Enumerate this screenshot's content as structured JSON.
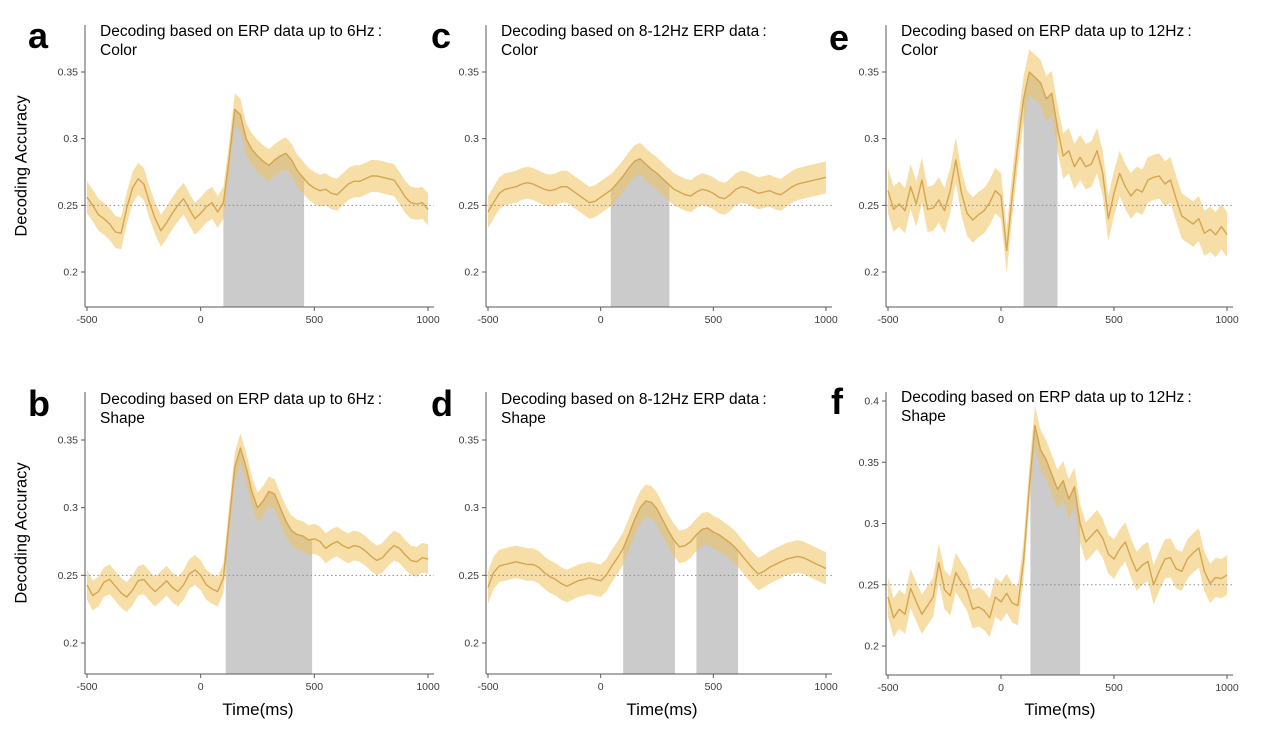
{
  "figure": {
    "ylabel": "Decoding Accuracy",
    "xlabel": "Time(ms)",
    "chance_level": 0.25,
    "background": "#ffffff"
  },
  "colors": {
    "band": "#f0c35e",
    "band_alpha": 0.55,
    "line": "#d3a14b",
    "line_alpha": 0.95,
    "sig": "#cbcbcb",
    "dash": "#8c8c8c",
    "axis": "#5a5a5a",
    "tick_text": "#3c3c3c",
    "title_text": "#000000"
  },
  "chart_data": [
    {
      "id": "a",
      "letter": "a",
      "type": "line",
      "title_line1": "Decoding based on ERP data up to 6Hz :",
      "title_line2": "Color",
      "x_start": -500,
      "x_step": 25,
      "xlim": [
        -510,
        1020
      ],
      "ylim": [
        0.178,
        0.386
      ],
      "x_ticks": {
        "values": [
          -500,
          0,
          500,
          1000
        ],
        "labels": [
          "-500",
          "0",
          "500",
          "1000"
        ]
      },
      "y_ticks": {
        "values": [
          0.2,
          0.25,
          0.3,
          0.35
        ],
        "labels": [
          "0.2",
          "0.25",
          "0.3",
          "0.35"
        ]
      },
      "band_halfwidth": 0.012,
      "sig_regions": [
        [
          100,
          455
        ]
      ],
      "values": [
        0.256,
        0.25,
        0.243,
        0.24,
        0.236,
        0.23,
        0.229,
        0.248,
        0.263,
        0.27,
        0.266,
        0.252,
        0.24,
        0.231,
        0.237,
        0.244,
        0.25,
        0.255,
        0.247,
        0.24,
        0.244,
        0.249,
        0.252,
        0.245,
        0.252,
        0.285,
        0.322,
        0.318,
        0.3,
        0.292,
        0.287,
        0.283,
        0.28,
        0.284,
        0.287,
        0.289,
        0.284,
        0.276,
        0.271,
        0.266,
        0.263,
        0.261,
        0.262,
        0.259,
        0.258,
        0.262,
        0.266,
        0.268,
        0.268,
        0.27,
        0.272,
        0.272,
        0.271,
        0.27,
        0.269,
        0.263,
        0.256,
        0.252,
        0.251,
        0.252,
        0.247
      ]
    },
    {
      "id": "b",
      "letter": "b",
      "type": "line",
      "title_line1": "Decoding based on ERP data up to 6Hz :",
      "title_line2": "Shape",
      "x_start": -500,
      "x_step": 25,
      "xlim": [
        -510,
        1020
      ],
      "ylim": [
        0.177,
        0.388
      ],
      "x_ticks": {
        "values": [
          -500,
          0,
          500,
          1000
        ],
        "labels": [
          "-500",
          "0",
          "500",
          "1000"
        ]
      },
      "y_ticks": {
        "values": [
          0.2,
          0.25,
          0.3,
          0.35
        ],
        "labels": [
          "0.2",
          "0.25",
          "0.3",
          "0.35"
        ]
      },
      "band_halfwidth": 0.011,
      "sig_regions": [
        [
          110,
          490
        ]
      ],
      "values": [
        0.243,
        0.235,
        0.238,
        0.245,
        0.247,
        0.242,
        0.237,
        0.234,
        0.239,
        0.246,
        0.247,
        0.242,
        0.238,
        0.242,
        0.246,
        0.241,
        0.238,
        0.243,
        0.251,
        0.254,
        0.25,
        0.243,
        0.24,
        0.238,
        0.248,
        0.29,
        0.33,
        0.344,
        0.33,
        0.312,
        0.3,
        0.305,
        0.312,
        0.31,
        0.3,
        0.29,
        0.283,
        0.28,
        0.279,
        0.276,
        0.277,
        0.275,
        0.27,
        0.273,
        0.275,
        0.272,
        0.27,
        0.272,
        0.271,
        0.268,
        0.264,
        0.261,
        0.263,
        0.268,
        0.272,
        0.27,
        0.265,
        0.261,
        0.26,
        0.263,
        0.262
      ]
    },
    {
      "id": "c",
      "letter": "c",
      "type": "line",
      "title_line1": "Decoding based on 8-12Hz ERP data :",
      "title_line2": "Color",
      "x_start": -500,
      "x_step": 25,
      "xlim": [
        -510,
        1020
      ],
      "ylim": [
        0.178,
        0.386
      ],
      "x_ticks": {
        "values": [
          -500,
          0,
          500,
          1000
        ],
        "labels": [
          "-500",
          "0",
          "500",
          "1000"
        ]
      },
      "y_ticks": {
        "values": [
          0.2,
          0.25,
          0.3,
          0.35
        ],
        "labels": [
          "0.2",
          "0.25",
          "0.3",
          "0.35"
        ]
      },
      "band_halfwidth": 0.012,
      "sig_regions": [
        [
          45,
          305
        ]
      ],
      "values": [
        0.245,
        0.252,
        0.259,
        0.262,
        0.263,
        0.264,
        0.266,
        0.267,
        0.266,
        0.264,
        0.262,
        0.261,
        0.262,
        0.264,
        0.264,
        0.261,
        0.258,
        0.255,
        0.252,
        0.253,
        0.256,
        0.259,
        0.262,
        0.267,
        0.272,
        0.278,
        0.283,
        0.285,
        0.281,
        0.277,
        0.274,
        0.27,
        0.266,
        0.262,
        0.26,
        0.258,
        0.257,
        0.26,
        0.262,
        0.261,
        0.259,
        0.256,
        0.255,
        0.258,
        0.262,
        0.264,
        0.263,
        0.261,
        0.259,
        0.26,
        0.261,
        0.259,
        0.258,
        0.261,
        0.264,
        0.266,
        0.267,
        0.268,
        0.269,
        0.27,
        0.271
      ]
    },
    {
      "id": "d",
      "letter": "d",
      "type": "line",
      "title_line1": "Decoding based on 8-12Hz ERP data :",
      "title_line2": "Shape",
      "x_start": -500,
      "x_step": 25,
      "xlim": [
        -510,
        1020
      ],
      "ylim": [
        0.177,
        0.388
      ],
      "x_ticks": {
        "values": [
          -500,
          0,
          500,
          1000
        ],
        "labels": [
          "-500",
          "0",
          "500",
          "1000"
        ]
      },
      "y_ticks": {
        "values": [
          0.2,
          0.25,
          0.3,
          0.35
        ],
        "labels": [
          "0.2",
          "0.25",
          "0.3",
          "0.35"
        ]
      },
      "band_halfwidth": 0.012,
      "sig_regions": [
        [
          100,
          330
        ],
        [
          425,
          610
        ]
      ],
      "values": [
        0.241,
        0.252,
        0.257,
        0.258,
        0.259,
        0.26,
        0.259,
        0.258,
        0.258,
        0.256,
        0.252,
        0.249,
        0.247,
        0.244,
        0.242,
        0.244,
        0.246,
        0.247,
        0.248,
        0.247,
        0.246,
        0.25,
        0.257,
        0.263,
        0.27,
        0.28,
        0.291,
        0.3,
        0.305,
        0.304,
        0.299,
        0.291,
        0.283,
        0.276,
        0.271,
        0.272,
        0.275,
        0.28,
        0.284,
        0.285,
        0.282,
        0.28,
        0.277,
        0.274,
        0.27,
        0.265,
        0.26,
        0.255,
        0.251,
        0.253,
        0.256,
        0.258,
        0.26,
        0.262,
        0.263,
        0.264,
        0.263,
        0.261,
        0.259,
        0.257,
        0.255
      ]
    },
    {
      "id": "e",
      "letter": "e",
      "type": "line",
      "title_line1": "Decoding based on ERP data up to 12Hz :",
      "title_line2": "Color",
      "x_start": -500,
      "x_step": 25,
      "xlim": [
        -510,
        1020
      ],
      "ylim": [
        0.178,
        0.386
      ],
      "x_ticks": {
        "values": [
          -500,
          0,
          500,
          1000
        ],
        "labels": [
          "-500",
          "0",
          "500",
          "1000"
        ]
      },
      "y_ticks": {
        "values": [
          0.2,
          0.25,
          0.3,
          0.35
        ],
        "labels": [
          "0.2",
          "0.25",
          "0.3",
          "0.35"
        ]
      },
      "band_halfwidth": 0.017,
      "sig_regions": [
        [
          100,
          250
        ]
      ],
      "values": [
        0.261,
        0.247,
        0.251,
        0.246,
        0.264,
        0.251,
        0.269,
        0.247,
        0.248,
        0.254,
        0.246,
        0.261,
        0.284,
        0.259,
        0.244,
        0.239,
        0.243,
        0.246,
        0.252,
        0.261,
        0.257,
        0.216,
        0.258,
        0.296,
        0.33,
        0.35,
        0.346,
        0.342,
        0.33,
        0.334,
        0.308,
        0.287,
        0.291,
        0.279,
        0.286,
        0.279,
        0.281,
        0.291,
        0.274,
        0.24,
        0.259,
        0.274,
        0.264,
        0.257,
        0.262,
        0.26,
        0.269,
        0.271,
        0.272,
        0.266,
        0.269,
        0.255,
        0.242,
        0.239,
        0.236,
        0.24,
        0.229,
        0.232,
        0.228,
        0.234,
        0.228
      ]
    },
    {
      "id": "f",
      "letter": "f",
      "type": "line",
      "title_line1": "Decoding based on ERP data up to 12Hz :",
      "title_line2": "Shape",
      "x_start": -500,
      "x_step": 25,
      "xlim": [
        -510,
        1020
      ],
      "ylim": [
        0.176,
        0.406
      ],
      "x_ticks": {
        "values": [
          -500,
          0,
          500,
          1000
        ],
        "labels": [
          "-500",
          "0",
          "500",
          "1000"
        ]
      },
      "y_ticks": {
        "values": [
          0.2,
          0.25,
          0.3,
          0.35,
          0.4
        ],
        "labels": [
          "0.2",
          "0.25",
          "0.3",
          "0.35",
          "0.4"
        ]
      },
      "band_halfwidth": 0.016,
      "sig_regions": [
        [
          130,
          350
        ]
      ],
      "values": [
        0.24,
        0.223,
        0.23,
        0.226,
        0.247,
        0.236,
        0.226,
        0.233,
        0.24,
        0.268,
        0.246,
        0.241,
        0.26,
        0.252,
        0.245,
        0.23,
        0.232,
        0.229,
        0.223,
        0.24,
        0.236,
        0.243,
        0.235,
        0.233,
        0.27,
        0.33,
        0.38,
        0.36,
        0.352,
        0.34,
        0.328,
        0.335,
        0.32,
        0.33,
        0.3,
        0.285,
        0.29,
        0.295,
        0.288,
        0.275,
        0.271,
        0.279,
        0.285,
        0.272,
        0.261,
        0.266,
        0.269,
        0.25,
        0.261,
        0.271,
        0.272,
        0.263,
        0.261,
        0.271,
        0.276,
        0.28,
        0.261,
        0.251,
        0.256,
        0.255,
        0.258
      ]
    }
  ]
}
